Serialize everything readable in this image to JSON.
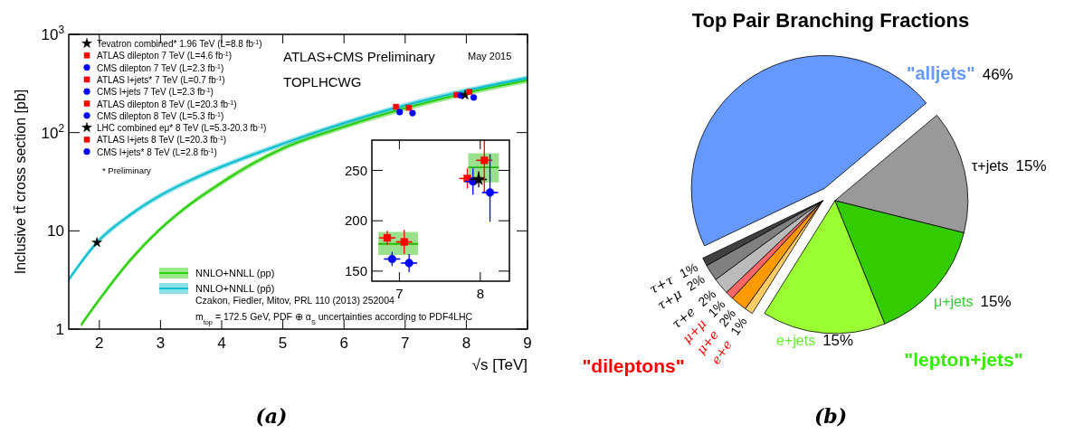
{
  "chart_data": [
    {
      "type": "scatter",
      "xlabel": "√s [TeV]",
      "ylabel": "Inclusive tt̄ cross section [pb]",
      "log": "y",
      "xlim": [
        1.5,
        9
      ],
      "ylim": [
        1,
        1000
      ],
      "xticks": [
        2,
        3,
        4,
        5,
        6,
        7,
        8,
        9
      ],
      "yticks": [
        1,
        10,
        {
          "value": 100,
          "label": "10$^{2}$"
        },
        {
          "value": 1000,
          "label": "10$^{3}$"
        }
      ],
      "legend": "top left",
      "annotations": [
        "ATLAS+CMS Preliminary",
        "May 2015",
        "TOPLHCWG",
        "* Preliminary",
        "Czakon, Fiedler, Mitov, PRL 110 (2013) 252004",
        "m$_{top}$ = 172.5 GeV, PDF ⊕ α$_{S}$ uncertainties according to PDF4LHC",
        "(a)"
      ],
      "series": [
        {
          "name": "NNLO+NNLL (pp)",
          "type": "line",
          "color": "#22cc00",
          "x": [
            1.7,
            2,
            2.5,
            3,
            3.5,
            4,
            4.5,
            5,
            6,
            7,
            8,
            9
          ],
          "values": [
            1.1,
            2.0,
            5,
            10.5,
            19,
            31,
            48,
            69,
            115,
            177,
            253,
            340
          ],
          "lower": [
            1.03,
            1.88,
            4.7,
            9.9,
            17.9,
            29.1,
            45.1,
            64.9,
            108,
            166,
            238,
            320
          ],
          "upper": [
            1.17,
            2.12,
            5.3,
            11.1,
            20.1,
            32.9,
            50.9,
            73.1,
            122,
            188,
            268,
            360
          ]
        },
        {
          "name": "NNLO+NNLL (pp̄)",
          "type": "line",
          "color": "#00bbcc",
          "x": [
            1.5,
            1.96,
            2.5,
            3,
            3.5,
            4,
            5,
            6,
            7,
            8,
            9
          ],
          "values": [
            3.2,
            7.6,
            14.5,
            23,
            33,
            45,
            77,
            125,
            190,
            268,
            360
          ],
          "lower": [
            3.0,
            7.1,
            13.6,
            21.6,
            31,
            42.3,
            72.4,
            117.5,
            178.6,
            252,
            338
          ],
          "upper": [
            3.4,
            8.1,
            15.4,
            24.4,
            35,
            47.7,
            81.6,
            132.5,
            201.4,
            284,
            382
          ]
        },
        {
          "name": "Tevatron combined* 1.96 TeV (L=8.8 fb$^{-1}$)",
          "marker": "star",
          "color": "#000000",
          "x": [
            1.96
          ],
          "values": [
            7.6
          ]
        },
        {
          "name": "ATLAS dilepton 7 TeV (L=4.6 fb$^{-1}$)",
          "marker": "square",
          "color": "#ff0000",
          "x": [
            6.85
          ],
          "values": [
            183
          ]
        },
        {
          "name": "CMS dilepton 7 TeV (L=2.3 fb$^{-1}$)",
          "marker": "circle",
          "color": "#0000ff",
          "x": [
            6.91
          ],
          "values": [
            162
          ]
        },
        {
          "name": "ATLAS l+jets* 7 TeV (L=0.7 fb$^{-1}$)",
          "marker": "square",
          "color": "#ff0000",
          "x": [
            7.06
          ],
          "values": [
            179
          ]
        },
        {
          "name": "CMS l+jets 7 TeV (L=2.3 fb$^{-1}$)",
          "marker": "circle",
          "color": "#0000ff",
          "x": [
            7.12
          ],
          "values": [
            158
          ]
        },
        {
          "name": "ATLAS dilepton 8 TeV (L=20.3 fb$^{-1}$)",
          "marker": "square",
          "color": "#ff0000",
          "x": [
            7.84
          ],
          "values": [
            242
          ]
        },
        {
          "name": "CMS dilepton 8 TeV (L=5.3 fb$^{-1}$)",
          "marker": "circle",
          "color": "#0000ff",
          "x": [
            7.91
          ],
          "values": [
            239
          ]
        },
        {
          "name": "LHC combined eμ* 8 TeV (L=5.3-20.3 fb$^{-1}$)",
          "marker": "star",
          "color": "#000000",
          "x": [
            7.98
          ],
          "values": [
            241
          ]
        },
        {
          "name": "ATLAS l+jets 8 TeV (L=20.3 fb$^{-1}$)",
          "marker": "square",
          "color": "#ff0000",
          "x": [
            8.05
          ],
          "values": [
            260
          ]
        },
        {
          "name": "CMS l+jets* 8 TeV (L=2.8 fb$^{-1}$)",
          "marker": "circle",
          "color": "#0000ff",
          "x": [
            8.12
          ],
          "values": [
            228
          ]
        }
      ]
    },
    {
      "type": "scatter",
      "xlim": [
        6.66,
        8.36
      ],
      "ylim": [
        140,
        280
      ],
      "xticks": [
        7,
        8
      ],
      "yticks": [
        150,
        200,
        250
      ],
      "series": [
        {
          "type": "line",
          "color": "#22bb00",
          "x": [
            6.74,
            7.23
          ],
          "values": [
            177,
            177
          ],
          "lower": [
            166,
            166
          ],
          "upper": [
            189,
            189
          ]
        },
        {
          "type": "line",
          "color": "#22bb00",
          "x": [
            7.85,
            8.23
          ],
          "values": [
            253,
            253
          ],
          "lower": [
            238,
            238
          ],
          "upper": [
            267,
            267
          ]
        },
        {
          "marker": "square",
          "color": "#ff0000",
          "x": [
            6.85
          ],
          "values": [
            183
          ],
          "errors": [
            7
          ],
          "xerrors": [
            0.1
          ]
        },
        {
          "marker": "circle",
          "color": "#0000ff",
          "x": [
            6.91
          ],
          "values": [
            162
          ],
          "errors": [
            7
          ],
          "xerrors": [
            0.1
          ]
        },
        {
          "marker": "square",
          "color": "#ff0000",
          "x": [
            7.06
          ],
          "values": [
            179
          ],
          "errors": [
            12
          ],
          "xerrors": [
            0.1
          ]
        },
        {
          "marker": "circle",
          "color": "#0000ff",
          "x": [
            7.12
          ],
          "values": [
            158
          ],
          "errors": [
            9
          ],
          "xerrors": [
            0.1
          ]
        },
        {
          "marker": "square",
          "color": "#ff0000",
          "x": [
            7.84
          ],
          "values": [
            242
          ],
          "errors": [
            10
          ],
          "xerrors": [
            0.1
          ]
        },
        {
          "marker": "circle",
          "color": "#0000ff",
          "x": [
            7.91
          ],
          "values": [
            239
          ],
          "errors": [
            13
          ],
          "xerrors": [
            0.1
          ]
        },
        {
          "marker": "star",
          "color": "#000000",
          "x": [
            7.98
          ],
          "values": [
            241
          ],
          "errors": [
            8
          ],
          "xerrors": [
            0.1
          ]
        },
        {
          "marker": "square",
          "color": "#ff0000",
          "x": [
            8.05
          ],
          "values": [
            260
          ],
          "errors": [
            [
              228,
              280
            ]
          ],
          "xerrors": [
            0.1
          ]
        },
        {
          "marker": "circle",
          "color": "#0000ff",
          "x": [
            8.12
          ],
          "values": [
            228
          ],
          "errors": [
            [
              199,
              266
            ]
          ],
          "xerrors": [
            0.1
          ]
        }
      ]
    },
    {
      "type": "pie",
      "title": "Top Pair Branching Fractions",
      "categories": [
        "\"alljets\"",
        "τ+jets",
        "μ+jets",
        "e+jets",
        "e+e",
        "μ+e",
        "μ+μ",
        "τ+e",
        "τ+μ",
        "τ+τ"
      ],
      "values": [
        46,
        15,
        15,
        15,
        1,
        2,
        1,
        2,
        2,
        1
      ],
      "colors": [
        "#6699ff",
        "#999999",
        "#33cc00",
        "#99ff33",
        "#ffcc66",
        "#ff9900",
        "#ff6666",
        "#bbbbbb",
        "#808080",
        "#404040"
      ],
      "value_labels": [
        "46%",
        "15%",
        "15%",
        "15%",
        "1%",
        "2%",
        "1%",
        "2%",
        "2%",
        "1%"
      ],
      "annotations": [
        "\"dileptons\"",
        "\"lepton+jets\"",
        "(b)"
      ]
    }
  ]
}
